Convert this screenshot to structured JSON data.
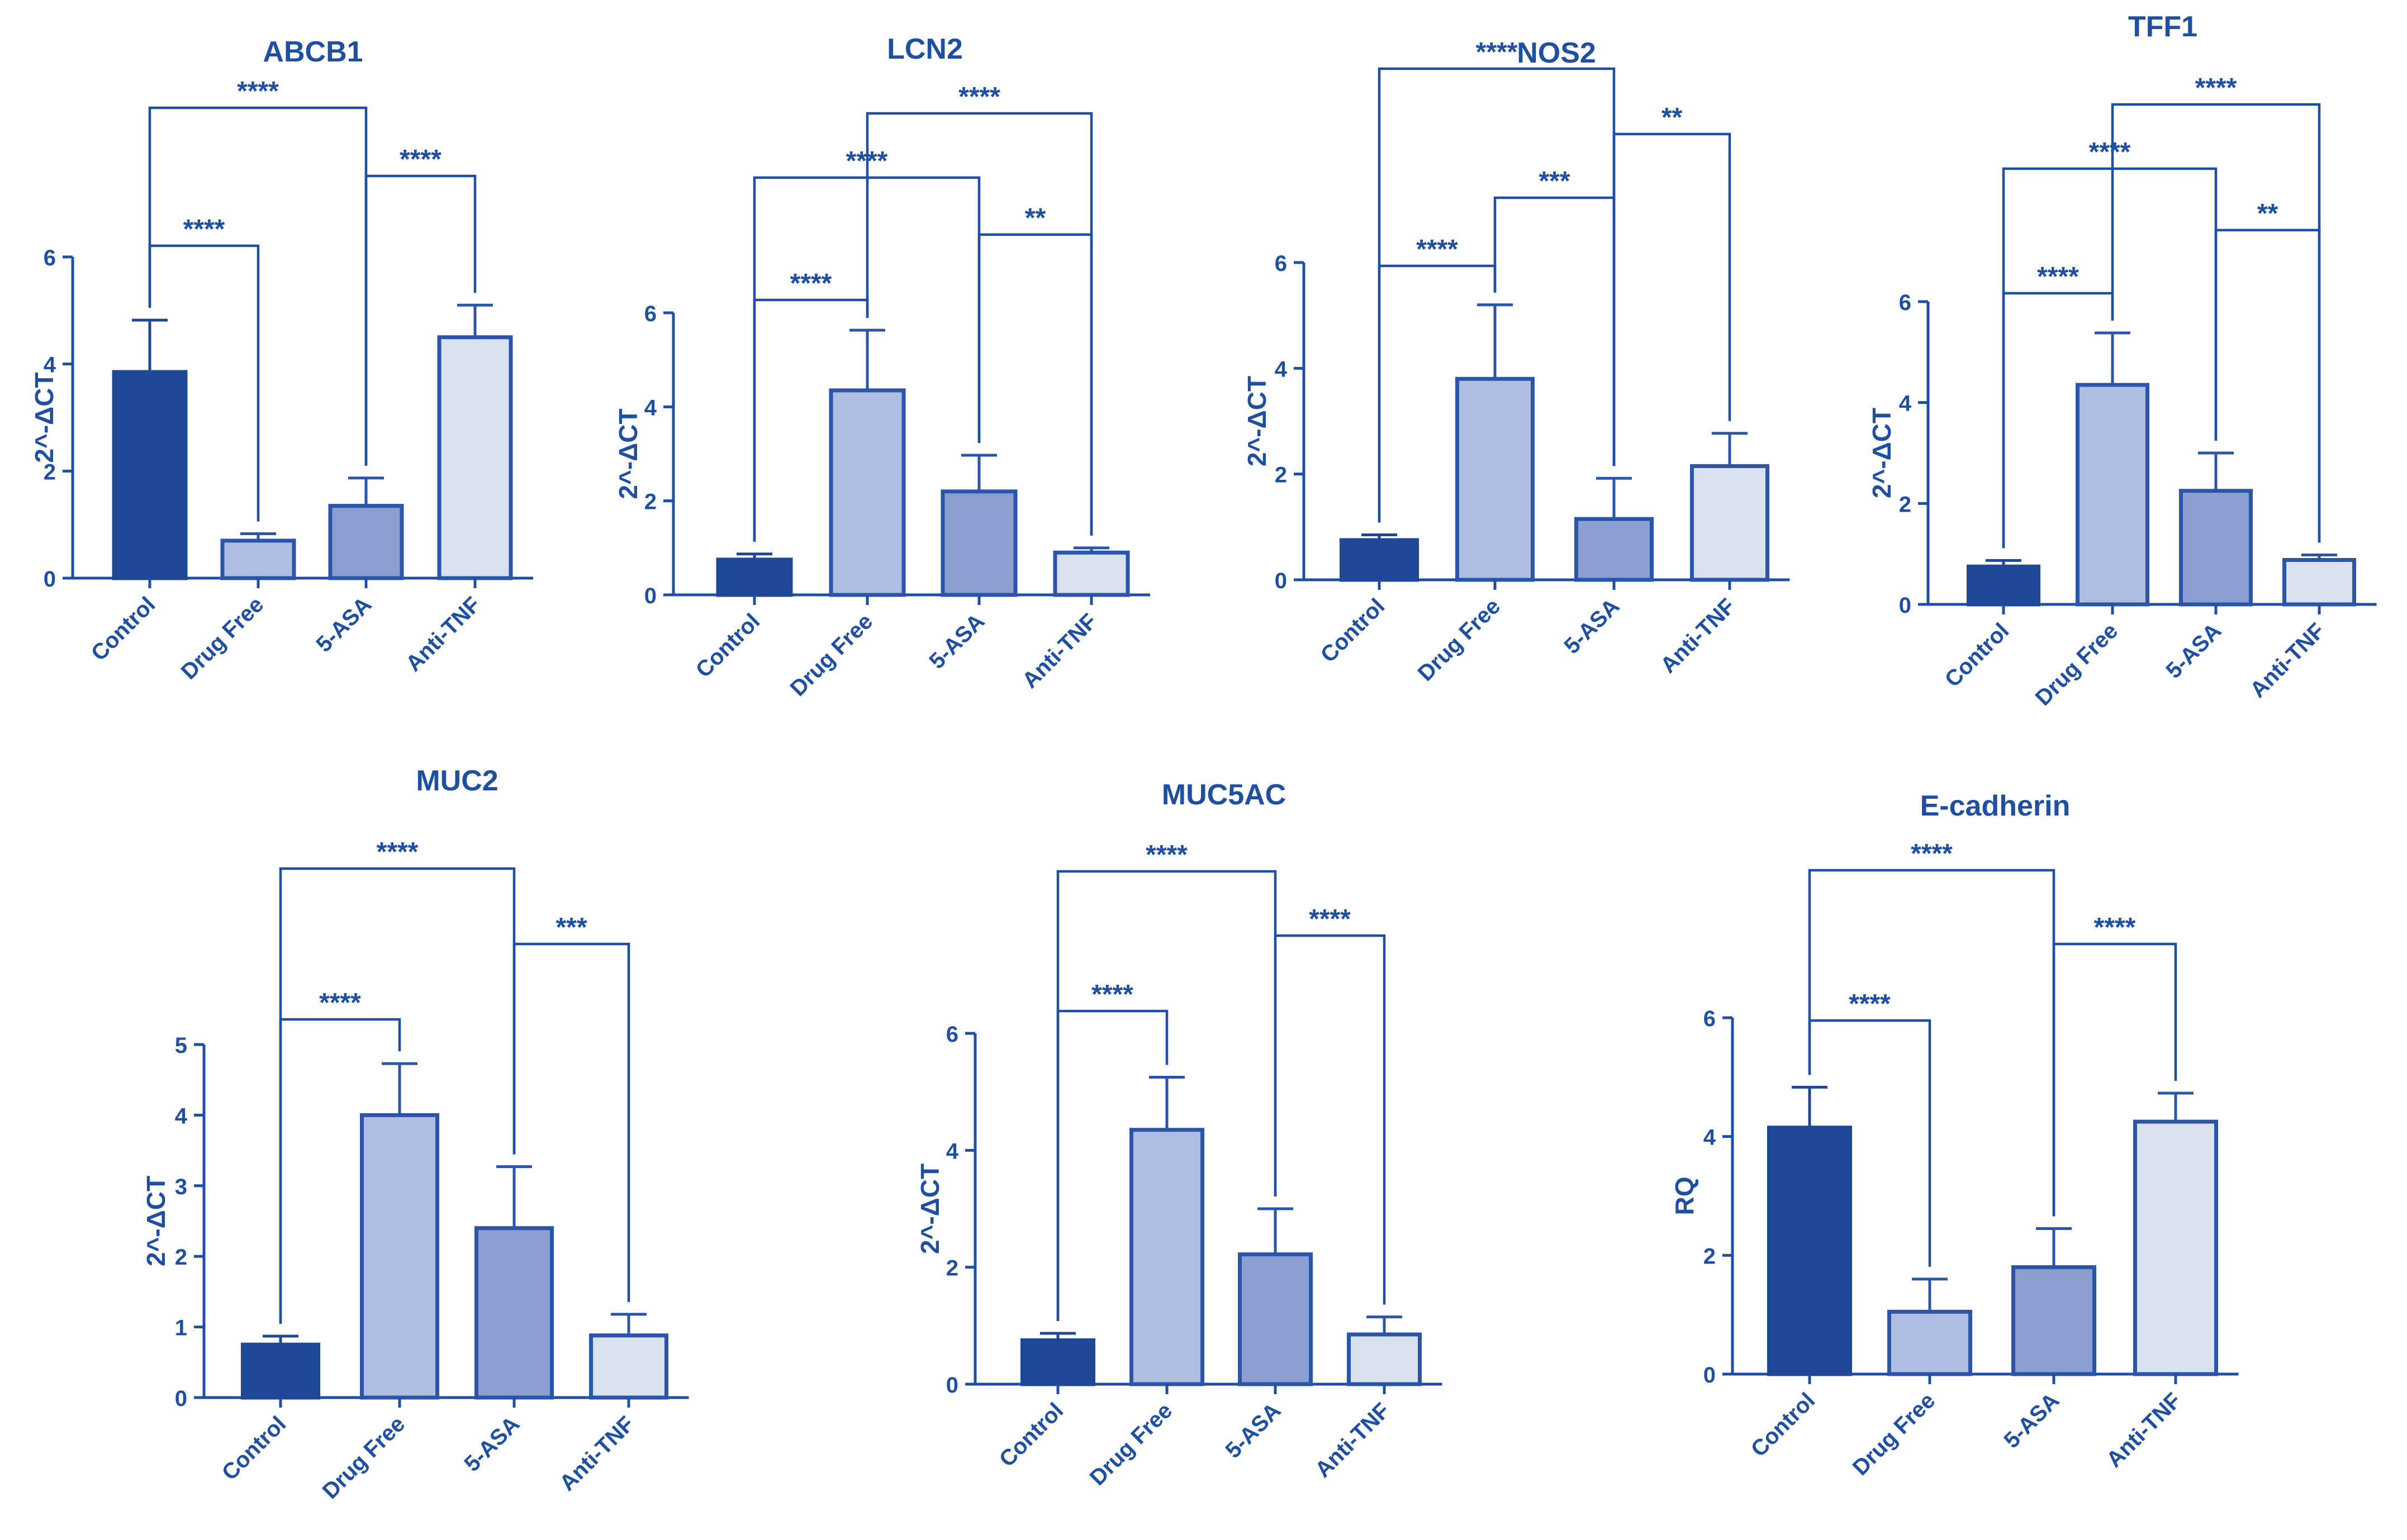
{
  "colors": {
    "ink": "#1f4fa0",
    "axis": "#1f4fa0",
    "bar_fills": [
      "#1e4896",
      "#aebde0",
      "#8a9fd0",
      "#d8e1f0"
    ],
    "bar_strokes": [
      "#1e4896",
      "#2a55a8",
      "#2a55a8",
      "#2a55a8"
    ]
  },
  "chart_data": [
    {
      "type": "bar",
      "title": "ABCB1",
      "ylabel": "2^-ΔCT",
      "categories": [
        "Control",
        "Drug Free",
        "5-ASA",
        "Anti-TNF"
      ],
      "values": [
        3.85,
        0.7,
        1.35,
        4.5
      ],
      "errors": [
        0.97,
        0.13,
        0.52,
        0.6
      ],
      "ylim": [
        0,
        6
      ],
      "yticks": [
        "0",
        "2",
        "4",
        "6"
      ],
      "significance": [
        {
          "from": 0,
          "to": 1,
          "label": "****"
        },
        {
          "from": 2,
          "to": 3,
          "label": "****"
        },
        {
          "from": 0,
          "to": 2,
          "label": "****"
        },
        {
          "from": 1,
          "to": 3,
          "label": "****"
        }
      ]
    },
    {
      "type": "bar",
      "title": "LCN2",
      "ylabel": "2^-ΔCT",
      "categories": [
        "Control",
        "Drug Free",
        "5-ASA",
        "Anti-TNF"
      ],
      "values": [
        0.75,
        4.35,
        2.2,
        0.9
      ],
      "errors": [
        0.12,
        1.28,
        0.77,
        0.1
      ],
      "ylim": [
        0,
        6
      ],
      "yticks": [
        "0",
        "2",
        "4",
        "6"
      ],
      "significance": [
        {
          "from": 0,
          "to": 1,
          "label": "****"
        },
        {
          "from": 2,
          "to": 3,
          "label": "**"
        },
        {
          "from": 0,
          "to": 2,
          "label": "****"
        },
        {
          "from": 1,
          "to": 3,
          "label": "****"
        },
        {
          "from": 0,
          "to": 3,
          "label": "*"
        }
      ]
    },
    {
      "type": "bar",
      "title": "NOS2",
      "ylabel": "2^-ΔCT",
      "categories": [
        "Control",
        "Drug Free",
        "5-ASA",
        "Anti-TNF"
      ],
      "values": [
        0.75,
        3.8,
        1.15,
        2.15
      ],
      "errors": [
        0.1,
        1.4,
        0.77,
        0.62
      ],
      "ylim": [
        0,
        6
      ],
      "yticks": [
        "0",
        "2",
        "4",
        "6"
      ],
      "significance": [
        {
          "from": 0,
          "to": 1,
          "label": "****"
        },
        {
          "from": 1,
          "to": 2,
          "label": "***"
        },
        {
          "from": 2,
          "to": 3,
          "label": "**"
        },
        {
          "from": 0,
          "to": 2,
          "label": "****"
        },
        {
          "from": 0,
          "to": 3,
          "label": "****"
        }
      ]
    },
    {
      "type": "bar",
      "title": "TFF1",
      "ylabel": "2^-ΔCT",
      "categories": [
        "Control",
        "Drug Free",
        "5-ASA",
        "Anti-TNF"
      ],
      "values": [
        0.75,
        4.35,
        2.25,
        0.88
      ],
      "errors": [
        0.12,
        1.03,
        0.75,
        0.1
      ],
      "ylim": [
        0,
        6
      ],
      "yticks": [
        "0",
        "2",
        "4",
        "6"
      ],
      "significance": [
        {
          "from": 0,
          "to": 1,
          "label": "****"
        },
        {
          "from": 2,
          "to": 3,
          "label": "**"
        },
        {
          "from": 0,
          "to": 2,
          "label": "****"
        },
        {
          "from": 1,
          "to": 3,
          "label": "****"
        },
        {
          "from": 0,
          "to": 3,
          "label": "*"
        }
      ]
    },
    {
      "type": "bar",
      "title": "MUC2",
      "ylabel": "2^-ΔCT",
      "categories": [
        "Control",
        "Drug Free",
        "5-ASA",
        "Anti-TNF"
      ],
      "values": [
        0.75,
        4.0,
        2.4,
        0.88
      ],
      "errors": [
        0.12,
        0.73,
        0.87,
        0.3
      ],
      "ylim": [
        0,
        5
      ],
      "yticks": [
        "0",
        "1",
        "2",
        "3",
        "4",
        "5"
      ],
      "significance": [
        {
          "from": 0,
          "to": 1,
          "label": "****"
        },
        {
          "from": 2,
          "to": 3,
          "label": "***"
        },
        {
          "from": 0,
          "to": 2,
          "label": "****"
        },
        {
          "from": 1,
          "to": 3,
          "label": "****"
        }
      ]
    },
    {
      "type": "bar",
      "title": "MUC5AC",
      "ylabel": "2^-ΔCT",
      "categories": [
        "Control",
        "Drug Free",
        "5-ASA",
        "Anti-TNF"
      ],
      "values": [
        0.75,
        4.35,
        2.22,
        0.85
      ],
      "errors": [
        0.12,
        0.9,
        0.78,
        0.3
      ],
      "ylim": [
        0,
        6
      ],
      "yticks": [
        "0",
        "2",
        "4",
        "6"
      ],
      "significance": [
        {
          "from": 0,
          "to": 1,
          "label": "****"
        },
        {
          "from": 2,
          "to": 3,
          "label": "****"
        },
        {
          "from": 0,
          "to": 2,
          "label": "****"
        },
        {
          "from": 1,
          "to": 3,
          "label": "****"
        }
      ]
    },
    {
      "type": "bar",
      "title": "E-cadherin",
      "ylabel": "RQ",
      "categories": [
        "Control",
        "Drug Free",
        "5-ASA",
        "Anti-TNF"
      ],
      "values": [
        4.15,
        1.05,
        1.8,
        4.25
      ],
      "errors": [
        0.68,
        0.55,
        0.65,
        0.48
      ],
      "ylim": [
        0,
        6
      ],
      "yticks": [
        "0",
        "2",
        "4",
        "6"
      ],
      "significance": [
        {
          "from": 0,
          "to": 1,
          "label": "****"
        },
        {
          "from": 2,
          "to": 3,
          "label": "****"
        },
        {
          "from": 0,
          "to": 2,
          "label": "****"
        },
        {
          "from": 1,
          "to": 3,
          "label": "****"
        }
      ]
    }
  ]
}
